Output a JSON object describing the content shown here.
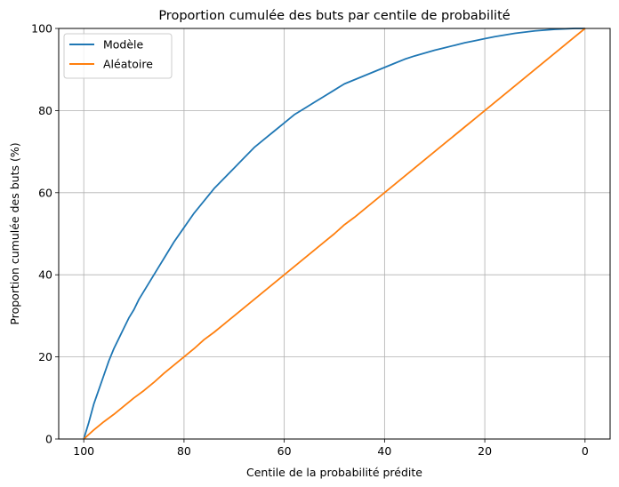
{
  "chart_data": {
    "type": "line",
    "title": "Proportion cumulée des buts par centile de probabilité",
    "xlabel": "Centile de la probabilité prédite",
    "ylabel": "Proportion cumulée des buts (%)",
    "xlim": [
      105,
      -5
    ],
    "ylim": [
      0,
      100
    ],
    "x_inverted": true,
    "xticks": [
      100,
      80,
      60,
      40,
      20,
      0
    ],
    "yticks": [
      0,
      20,
      40,
      60,
      80,
      100
    ],
    "grid": true,
    "legend_position": "top-left",
    "series": [
      {
        "name": "Modèle",
        "color": "#1f77b4",
        "x": [
          100,
          99,
          98,
          97,
          96,
          95,
          94,
          93,
          92,
          91,
          90,
          89,
          88,
          87,
          86,
          85,
          84,
          82,
          80,
          78,
          76,
          74,
          72,
          70,
          68,
          66,
          64,
          62,
          60,
          58,
          56,
          54,
          52,
          50,
          48,
          46,
          44,
          42,
          40,
          38,
          36,
          34,
          32,
          30,
          28,
          26,
          24,
          22,
          20,
          18,
          16,
          14,
          12,
          10,
          8,
          6,
          4,
          2,
          0
        ],
        "y": [
          0,
          4,
          8.5,
          12,
          15.5,
          19,
          22,
          24.5,
          27,
          29.5,
          31.5,
          34,
          36,
          38,
          40,
          42,
          44,
          48,
          51.5,
          55,
          58,
          61,
          63.5,
          66,
          68.5,
          71,
          73,
          75,
          77,
          79,
          80.5,
          82,
          83.5,
          85,
          86.5,
          87.5,
          88.5,
          89.5,
          90.5,
          91.5,
          92.5,
          93.3,
          94,
          94.7,
          95.3,
          95.9,
          96.5,
          97,
          97.5,
          98,
          98.4,
          98.8,
          99.1,
          99.4,
          99.6,
          99.8,
          99.9,
          100,
          100
        ]
      },
      {
        "name": "Aléatoire",
        "color": "#ff7f0e",
        "x": [
          100,
          98,
          96,
          94,
          92,
          90,
          88,
          86,
          84,
          82,
          80,
          78,
          76,
          74,
          72,
          70,
          68,
          66,
          64,
          62,
          60,
          58,
          56,
          54,
          52,
          50,
          48,
          46,
          44,
          42,
          40,
          38,
          36,
          34,
          32,
          30,
          28,
          26,
          24,
          22,
          20,
          18,
          16,
          14,
          12,
          10,
          8,
          6,
          4,
          2,
          0
        ],
        "y": [
          0,
          2.2,
          4.2,
          6,
          8,
          10,
          11.8,
          13.8,
          16,
          18,
          20,
          22,
          24.2,
          26,
          28,
          30,
          32,
          34,
          36,
          38,
          40,
          42,
          44,
          46,
          48,
          50,
          52.2,
          54,
          56,
          58,
          60,
          62,
          64,
          66,
          68,
          70,
          72,
          74,
          76,
          78,
          80,
          82,
          84,
          86,
          88,
          90,
          92,
          94,
          96,
          98,
          100
        ]
      }
    ]
  }
}
